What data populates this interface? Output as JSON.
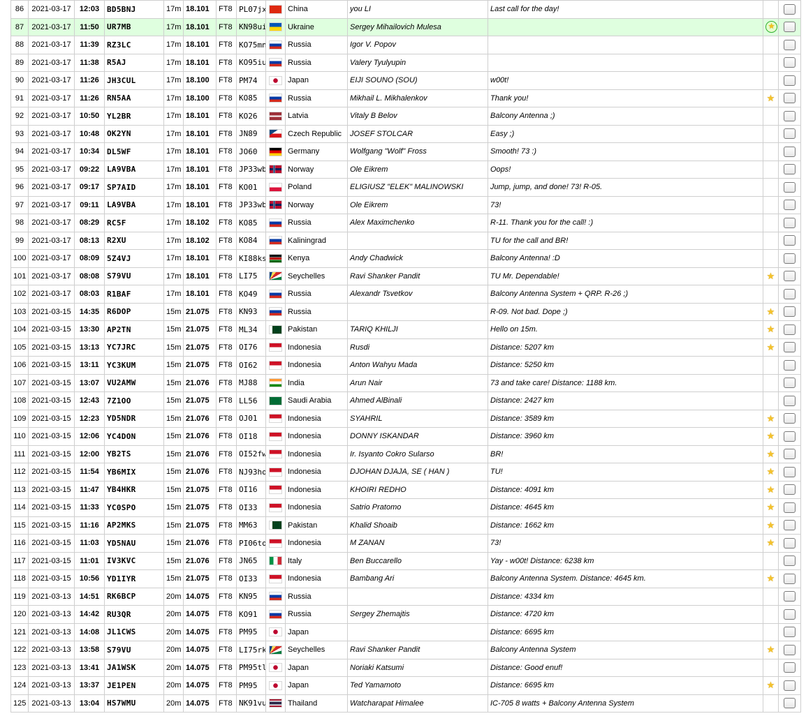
{
  "colors": {
    "time": "#9b0000",
    "frequency": "#1b2f9c",
    "grid": "#a00000",
    "name": "#1d2fa0",
    "highlight_row": "#dfffdf",
    "star": "#f5c22b"
  },
  "rows": [
    {
      "n": "86",
      "date": "2021-03-17",
      "time": "12:03",
      "call": "BD5BNJ",
      "band": "17m",
      "freq": "18.101",
      "mode": "FT8",
      "grid": "PL07jx",
      "flag": "cn",
      "country": "China",
      "name": "you LI",
      "comment": "Last call for the day!",
      "star": "none",
      "highlight": false
    },
    {
      "n": "87",
      "date": "2021-03-17",
      "time": "11:50",
      "call": "UR7MB",
      "band": "17m",
      "freq": "18.101",
      "mode": "FT8",
      "grid": "KN98ui",
      "flag": "ua",
      "country": "Ukraine",
      "name": "Sergey Mihailovich Mulesa",
      "comment": "",
      "star": "ring",
      "highlight": true
    },
    {
      "n": "88",
      "date": "2021-03-17",
      "time": "11:39",
      "call": "RZ3LC",
      "band": "17m",
      "freq": "18.101",
      "mode": "FT8",
      "grid": "KO75mn",
      "flag": "ru",
      "country": "Russia",
      "name": "Igor V. Popov",
      "comment": "",
      "star": "none",
      "highlight": false
    },
    {
      "n": "89",
      "date": "2021-03-17",
      "time": "11:38",
      "call": "R5AJ",
      "band": "17m",
      "freq": "18.101",
      "mode": "FT8",
      "grid": "KO95iu",
      "flag": "ru",
      "country": "Russia",
      "name": "Valery Tyulyupin",
      "comment": "",
      "star": "none",
      "highlight": false
    },
    {
      "n": "90",
      "date": "2021-03-17",
      "time": "11:26",
      "call": "JH3CUL",
      "band": "17m",
      "freq": "18.100",
      "mode": "FT8",
      "grid": "PM74",
      "flag": "jp",
      "country": "Japan",
      "name": "EIJI SOUNO (SOU)",
      "comment": "w00t!",
      "star": "none",
      "highlight": false
    },
    {
      "n": "91",
      "date": "2021-03-17",
      "time": "11:26",
      "call": "RN5AA",
      "band": "17m",
      "freq": "18.100",
      "mode": "FT8",
      "grid": "KO85",
      "flag": "ru",
      "country": "Russia",
      "name": "Mikhail L. Mikhalenkov",
      "comment": "Thank you!",
      "star": "star",
      "highlight": false
    },
    {
      "n": "92",
      "date": "2021-03-17",
      "time": "10:50",
      "call": "YL2BR",
      "band": "17m",
      "freq": "18.101",
      "mode": "FT8",
      "grid": "KO26",
      "flag": "lv",
      "country": "Latvia",
      "name": "Vitaly B Belov",
      "comment": "Balcony Antenna ;)",
      "star": "none",
      "highlight": false
    },
    {
      "n": "93",
      "date": "2021-03-17",
      "time": "10:48",
      "call": "OK2YN",
      "band": "17m",
      "freq": "18.101",
      "mode": "FT8",
      "grid": "JN89",
      "flag": "cz",
      "country": "Czech Republic",
      "name": "JOSEF STOLCAR",
      "comment": "Easy ;)",
      "star": "none",
      "highlight": false
    },
    {
      "n": "94",
      "date": "2021-03-17",
      "time": "10:34",
      "call": "DL5WF",
      "band": "17m",
      "freq": "18.101",
      "mode": "FT8",
      "grid": "JO60",
      "flag": "de",
      "country": "Germany",
      "name": "Wolfgang \"Wolf\" Fross",
      "comment": "Smooth! 73 :)",
      "star": "none",
      "highlight": false
    },
    {
      "n": "95",
      "date": "2021-03-17",
      "time": "09:22",
      "call": "LA9VBA",
      "band": "17m",
      "freq": "18.101",
      "mode": "FT8",
      "grid": "JP33wb",
      "flag": "no",
      "country": "Norway",
      "name": "Ole Eikrem",
      "comment": "Oops!",
      "star": "none",
      "highlight": false
    },
    {
      "n": "96",
      "date": "2021-03-17",
      "time": "09:17",
      "call": "SP7AID",
      "band": "17m",
      "freq": "18.101",
      "mode": "FT8",
      "grid": "KO01",
      "flag": "pl",
      "country": "Poland",
      "name": "ELIGIUSZ \"ELEK\" MALINOWSKI",
      "comment": "Jump, jump, and done! 73! R-05.",
      "star": "none",
      "highlight": false
    },
    {
      "n": "97",
      "date": "2021-03-17",
      "time": "09:11",
      "call": "LA9VBA",
      "band": "17m",
      "freq": "18.101",
      "mode": "FT8",
      "grid": "JP33wb",
      "flag": "no",
      "country": "Norway",
      "name": "Ole Eikrem",
      "comment": "73!",
      "star": "none",
      "highlight": false
    },
    {
      "n": "98",
      "date": "2021-03-17",
      "time": "08:29",
      "call": "RC5F",
      "band": "17m",
      "freq": "18.102",
      "mode": "FT8",
      "grid": "KO85",
      "flag": "ru",
      "country": "Russia",
      "name": "Alex Maximchenko",
      "comment": "R-11. Thank you for the call! :)",
      "star": "none",
      "highlight": false
    },
    {
      "n": "99",
      "date": "2021-03-17",
      "time": "08:13",
      "call": "R2XU",
      "band": "17m",
      "freq": "18.102",
      "mode": "FT8",
      "grid": "KO84",
      "flag": "ru",
      "country": "Kaliningrad",
      "name": "",
      "comment": "TU for the call and BR!",
      "star": "none",
      "highlight": false
    },
    {
      "n": "100",
      "date": "2021-03-17",
      "time": "08:09",
      "call": "5Z4VJ",
      "band": "17m",
      "freq": "18.101",
      "mode": "FT8",
      "grid": "KI88ks",
      "flag": "ke",
      "country": "Kenya",
      "name": "Andy Chadwick",
      "comment": "Balcony Antenna! :D",
      "star": "none",
      "highlight": false
    },
    {
      "n": "101",
      "date": "2021-03-17",
      "time": "08:08",
      "call": "S79VU",
      "band": "17m",
      "freq": "18.101",
      "mode": "FT8",
      "grid": "LI75",
      "flag": "sc",
      "country": "Seychelles",
      "name": "Ravi Shanker Pandit",
      "comment": "TU Mr. Dependable!",
      "star": "star",
      "highlight": false
    },
    {
      "n": "102",
      "date": "2021-03-17",
      "time": "08:03",
      "call": "R1BAF",
      "band": "17m",
      "freq": "18.101",
      "mode": "FT8",
      "grid": "KO49",
      "flag": "ru",
      "country": "Russia",
      "name": "Alexandr Tsvetkov",
      "comment": "Balcony Antenna System + QRP. R-26 ;)",
      "star": "none",
      "highlight": false
    },
    {
      "n": "103",
      "date": "2021-03-15",
      "time": "14:35",
      "call": "R6DOP",
      "band": "15m",
      "freq": "21.075",
      "mode": "FT8",
      "grid": "KN93",
      "flag": "ru",
      "country": "Russia",
      "name": "",
      "comment": "R-09. Not bad. Dope ;)",
      "star": "star",
      "highlight": false
    },
    {
      "n": "104",
      "date": "2021-03-15",
      "time": "13:30",
      "call": "AP2TN",
      "band": "15m",
      "freq": "21.075",
      "mode": "FT8",
      "grid": "ML34",
      "flag": "pk",
      "country": "Pakistan",
      "name": "TARIQ KHILJI",
      "comment": "Hello on 15m.",
      "star": "star",
      "highlight": false
    },
    {
      "n": "105",
      "date": "2021-03-15",
      "time": "13:13",
      "call": "YC7JRC",
      "band": "15m",
      "freq": "21.075",
      "mode": "FT8",
      "grid": "OI76",
      "flag": "id",
      "country": "Indonesia",
      "name": "Rusdi",
      "comment": "Distance: 5207 km",
      "star": "star",
      "highlight": false
    },
    {
      "n": "106",
      "date": "2021-03-15",
      "time": "13:11",
      "call": "YC3KUM",
      "band": "15m",
      "freq": "21.075",
      "mode": "FT8",
      "grid": "OI62",
      "flag": "id",
      "country": "Indonesia",
      "name": "Anton Wahyu Mada",
      "comment": "Distance: 5250 km",
      "star": "none",
      "highlight": false
    },
    {
      "n": "107",
      "date": "2021-03-15",
      "time": "13:07",
      "call": "VU2AMW",
      "band": "15m",
      "freq": "21.076",
      "mode": "FT8",
      "grid": "MJ88",
      "flag": "in",
      "country": "India",
      "name": "Arun Nair",
      "comment": "73 and take care! Distance: 1188 km.",
      "star": "none",
      "highlight": false
    },
    {
      "n": "108",
      "date": "2021-03-15",
      "time": "12:43",
      "call": "7Z1OO",
      "band": "15m",
      "freq": "21.075",
      "mode": "FT8",
      "grid": "LL56",
      "flag": "sa",
      "country": "Saudi Arabia",
      "name": "Ahmed AlBinali",
      "comment": "Distance: 2427 km",
      "star": "none",
      "highlight": false
    },
    {
      "n": "109",
      "date": "2021-03-15",
      "time": "12:23",
      "call": "YD5NDR",
      "band": "15m",
      "freq": "21.076",
      "mode": "FT8",
      "grid": "OJ01",
      "flag": "id",
      "country": "Indonesia",
      "name": "SYAHRIL",
      "comment": "Distance: 3589 km",
      "star": "star",
      "highlight": false
    },
    {
      "n": "110",
      "date": "2021-03-15",
      "time": "12:06",
      "call": "YC4DON",
      "band": "15m",
      "freq": "21.076",
      "mode": "FT8",
      "grid": "OI18",
      "flag": "id",
      "country": "Indonesia",
      "name": "DONNY ISKANDAR",
      "comment": "Distance: 3960 km",
      "star": "star",
      "highlight": false
    },
    {
      "n": "111",
      "date": "2021-03-15",
      "time": "12:00",
      "call": "YB2TS",
      "band": "15m",
      "freq": "21.076",
      "mode": "FT8",
      "grid": "OI52fw",
      "flag": "id",
      "country": "Indonesia",
      "name": "Ir. Isyanto Cokro Sularso",
      "comment": "BR!",
      "star": "star",
      "highlight": false
    },
    {
      "n": "112",
      "date": "2021-03-15",
      "time": "11:54",
      "call": "YB6MIX",
      "band": "15m",
      "freq": "21.076",
      "mode": "FT8",
      "grid": "NJ93ho",
      "flag": "id",
      "country": "Indonesia",
      "name": "DJOHAN DJAJA, SE ( HAN )",
      "comment": "TU!",
      "star": "star",
      "highlight": false
    },
    {
      "n": "113",
      "date": "2021-03-15",
      "time": "11:47",
      "call": "YB4HKR",
      "band": "15m",
      "freq": "21.075",
      "mode": "FT8",
      "grid": "OI16",
      "flag": "id",
      "country": "Indonesia",
      "name": "KHOIRI REDHO",
      "comment": "Distance: 4091 km",
      "star": "star",
      "highlight": false
    },
    {
      "n": "114",
      "date": "2021-03-15",
      "time": "11:33",
      "call": "YC0SPO",
      "band": "15m",
      "freq": "21.075",
      "mode": "FT8",
      "grid": "OI33",
      "flag": "id",
      "country": "Indonesia",
      "name": "Satrio Pratomo",
      "comment": "Distance: 4645 km",
      "star": "star",
      "highlight": false
    },
    {
      "n": "115",
      "date": "2021-03-15",
      "time": "11:16",
      "call": "AP2MKS",
      "band": "15m",
      "freq": "21.075",
      "mode": "FT8",
      "grid": "MM63",
      "flag": "pk",
      "country": "Pakistan",
      "name": "Khalid Shoaib",
      "comment": "Distance: 1662 km",
      "star": "star",
      "highlight": false
    },
    {
      "n": "116",
      "date": "2021-03-15",
      "time": "11:03",
      "call": "YD5NAU",
      "band": "15m",
      "freq": "21.076",
      "mode": "FT8",
      "grid": "PI06to",
      "flag": "id",
      "country": "Indonesia",
      "name": "M ZANAN",
      "comment": "73!",
      "star": "star",
      "highlight": false
    },
    {
      "n": "117",
      "date": "2021-03-15",
      "time": "11:01",
      "call": "IV3KVC",
      "band": "15m",
      "freq": "21.076",
      "mode": "FT8",
      "grid": "JN65",
      "flag": "it",
      "country": "Italy",
      "name": "Ben Buccarello",
      "comment": "Yay - w00t! Distance: 6238 km",
      "star": "none",
      "highlight": false
    },
    {
      "n": "118",
      "date": "2021-03-15",
      "time": "10:56",
      "call": "YD1IYR",
      "band": "15m",
      "freq": "21.075",
      "mode": "FT8",
      "grid": "OI33",
      "flag": "id",
      "country": "Indonesia",
      "name": "Bambang Ari",
      "comment": "Balcony Antenna System. Distance: 4645 km.",
      "star": "star",
      "highlight": false
    },
    {
      "n": "119",
      "date": "2021-03-13",
      "time": "14:51",
      "call": "RK6BCP",
      "band": "20m",
      "freq": "14.075",
      "mode": "FT8",
      "grid": "KN95",
      "flag": "ru",
      "country": "Russia",
      "name": "",
      "comment": "Distance: 4334 km",
      "star": "none",
      "highlight": false
    },
    {
      "n": "120",
      "date": "2021-03-13",
      "time": "14:42",
      "call": "RU3QR",
      "band": "20m",
      "freq": "14.075",
      "mode": "FT8",
      "grid": "KO91",
      "flag": "ru",
      "country": "Russia",
      "name": "Sergey Zhemajtis",
      "comment": "Distance: 4720 km",
      "star": "none",
      "highlight": false
    },
    {
      "n": "121",
      "date": "2021-03-13",
      "time": "14:08",
      "call": "JL1CWS",
      "band": "20m",
      "freq": "14.075",
      "mode": "FT8",
      "grid": "PM95",
      "flag": "jp",
      "country": "Japan",
      "name": "",
      "comment": "Distance: 6695 km",
      "star": "none",
      "highlight": false
    },
    {
      "n": "122",
      "date": "2021-03-13",
      "time": "13:58",
      "call": "S79VU",
      "band": "20m",
      "freq": "14.075",
      "mode": "FT8",
      "grid": "LI75rk",
      "flag": "sc",
      "country": "Seychelles",
      "name": "Ravi Shanker Pandit",
      "comment": "Balcony Antenna System",
      "star": "star",
      "highlight": false
    },
    {
      "n": "123",
      "date": "2021-03-13",
      "time": "13:41",
      "call": "JA1WSK",
      "band": "20m",
      "freq": "14.075",
      "mode": "FT8",
      "grid": "PM95tl",
      "flag": "jp",
      "country": "Japan",
      "name": "Noriaki Katsumi",
      "comment": "Distance: Good enuf!",
      "star": "none",
      "highlight": false
    },
    {
      "n": "124",
      "date": "2021-03-13",
      "time": "13:37",
      "call": "JE1PEN",
      "band": "20m",
      "freq": "14.075",
      "mode": "FT8",
      "grid": "PM95",
      "flag": "jp",
      "country": "Japan",
      "name": "Ted Yamamoto",
      "comment": "Distance: 6695 km",
      "star": "star",
      "highlight": false
    },
    {
      "n": "125",
      "date": "2021-03-13",
      "time": "13:04",
      "call": "HS7WMU",
      "band": "20m",
      "freq": "14.075",
      "mode": "FT8",
      "grid": "NK91vu",
      "flag": "th",
      "country": "Thailand",
      "name": "Watcharapat Himalee",
      "comment": "IC-705 8 watts + Balcony Antenna System",
      "star": "none",
      "highlight": false
    }
  ]
}
